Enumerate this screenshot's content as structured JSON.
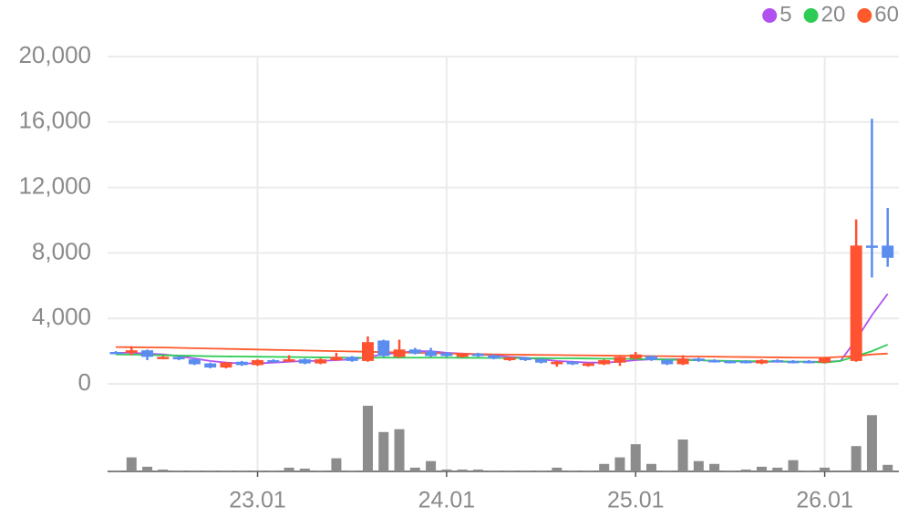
{
  "chart_data": {
    "type": "candlestick",
    "categories": [
      null,
      null,
      null,
      null,
      null,
      null,
      null,
      null,
      null,
      "23.01",
      null,
      null,
      null,
      null,
      null,
      null,
      null,
      null,
      null,
      null,
      null,
      "24.01",
      null,
      null,
      null,
      null,
      null,
      null,
      null,
      null,
      null,
      null,
      null,
      "25.01",
      null,
      null,
      null,
      null,
      null,
      null,
      null,
      null,
      null,
      null,
      null,
      "26.01",
      null,
      null,
      null,
      null
    ],
    "open": [
      1950,
      1900,
      2050,
      1550,
      1650,
      1500,
      1250,
      1000,
      1350,
      1150,
      1450,
      1400,
      1500,
      1250,
      1450,
      1650,
      1400,
      2650,
      1650,
      2100,
      2000,
      1900,
      1650,
      1850,
      1750,
      1450,
      1600,
      1500,
      1200,
      1350,
      1100,
      1200,
      1300,
      1550,
      1700,
      1450,
      1200,
      1550,
      1450,
      1400,
      1400,
      1250,
      1450,
      1400,
      1400,
      1300,
      null,
      1400,
      8450,
      8450
    ],
    "high": [
      2000,
      2300,
      2100,
      1700,
      1700,
      1550,
      1300,
      1350,
      1400,
      1500,
      1500,
      1750,
      1550,
      1550,
      1900,
      1700,
      2900,
      2700,
      2700,
      2200,
      2200,
      1950,
      1900,
      1900,
      1800,
      1650,
      1650,
      1550,
      1400,
      1400,
      1300,
      1500,
      1750,
      1950,
      1750,
      1500,
      1750,
      1600,
      1500,
      1450,
      1450,
      1500,
      1500,
      1450,
      1450,
      1650,
      null,
      10050,
      16200,
      10750
    ],
    "low": [
      1850,
      1750,
      1450,
      1500,
      1450,
      1150,
      950,
      950,
      1100,
      1100,
      1300,
      1350,
      1200,
      1200,
      1400,
      1350,
      1350,
      1650,
      1600,
      1800,
      1650,
      1650,
      1600,
      1650,
      1500,
      1400,
      1400,
      1250,
      1050,
      1150,
      1050,
      1150,
      1100,
      1500,
      1400,
      1150,
      1150,
      1350,
      1300,
      1250,
      1250,
      1200,
      1300,
      1250,
      1250,
      1250,
      null,
      1350,
      6500,
      7150
    ],
    "close": [
      1900,
      2050,
      1650,
      1650,
      1500,
      1200,
      1000,
      1300,
      1150,
      1450,
      1350,
      1500,
      1250,
      1500,
      1650,
      1400,
      2550,
      1700,
      2100,
      1850,
      1700,
      1700,
      1850,
      1700,
      1550,
      1600,
      1450,
      1300,
      1350,
      1200,
      1250,
      1450,
      1650,
      1800,
      1450,
      1200,
      1550,
      1400,
      1350,
      1300,
      1300,
      1450,
      1350,
      1300,
      1300,
      1600,
      null,
      8450,
      8400,
      7700
    ],
    "volume": [
      1,
      15,
      5,
      2,
      1,
      1,
      1,
      1,
      1,
      1,
      1,
      4,
      3,
      1,
      14,
      1,
      70,
      42,
      45,
      4,
      11,
      2,
      2,
      2,
      1,
      1,
      1,
      1,
      4,
      1,
      1,
      8,
      15,
      29,
      8,
      1,
      34,
      11,
      8,
      1,
      2,
      5,
      4,
      12,
      1,
      4,
      null,
      27,
      60,
      7
    ],
    "up_color": "#ff5230",
    "down_color": "#5b8def",
    "volume_color": "#8c8c8c",
    "moving_averages": [
      {
        "name": "5",
        "color": "#b051f0",
        "values": [
          1900,
          1900,
          1850,
          1800,
          1700,
          1550,
          1400,
          1300,
          1250,
          1250,
          1300,
          1350,
          1400,
          1400,
          1450,
          1500,
          1650,
          1800,
          1900,
          2000,
          2000,
          1900,
          1850,
          1800,
          1750,
          1650,
          1600,
          1500,
          1400,
          1350,
          1300,
          1300,
          1350,
          1450,
          1500,
          1500,
          1500,
          1450,
          1400,
          1400,
          1350,
          1350,
          1350,
          1350,
          1350,
          1350,
          1400,
          2700,
          4200,
          5500
        ]
      },
      {
        "name": "20",
        "color": "#2ecc55",
        "values": [
          1800,
          1790,
          1770,
          1750,
          1730,
          1710,
          1690,
          1680,
          1670,
          1660,
          1650,
          1640,
          1630,
          1620,
          1610,
          1600,
          1600,
          1600,
          1600,
          1600,
          1600,
          1600,
          1590,
          1590,
          1580,
          1580,
          1570,
          1570,
          1560,
          1560,
          1550,
          1540,
          1530,
          1520,
          1500,
          1480,
          1460,
          1440,
          1420,
          1400,
          1390,
          1380,
          1370,
          1360,
          1350,
          1300,
          1400,
          1700,
          2000,
          2400
        ]
      },
      {
        "name": "60",
        "color": "#ff5a2c",
        "values": [
          2250,
          2240,
          2230,
          2220,
          2200,
          2180,
          2160,
          2140,
          2120,
          2100,
          2080,
          2060,
          2040,
          2020,
          2000,
          1980,
          1960,
          1940,
          1920,
          1900,
          1880,
          1860,
          1840,
          1820,
          1800,
          1790,
          1780,
          1770,
          1760,
          1750,
          1740,
          1730,
          1720,
          1710,
          1700,
          1690,
          1680,
          1670,
          1660,
          1650,
          1640,
          1630,
          1620,
          1610,
          1600,
          1600,
          1650,
          1700,
          1800,
          1850
        ]
      }
    ],
    "ylim": [
      0,
      20000
    ],
    "yticks": [
      0,
      {
        "value": 4000,
        "label": "4,000"
      },
      {
        "value": 8000,
        "label": "8,000"
      },
      {
        "value": 12000,
        "label": "12,000"
      },
      {
        "value": 16000,
        "label": "16,000"
      },
      {
        "value": 20000,
        "label": "20,000"
      }
    ],
    "grid": true
  }
}
